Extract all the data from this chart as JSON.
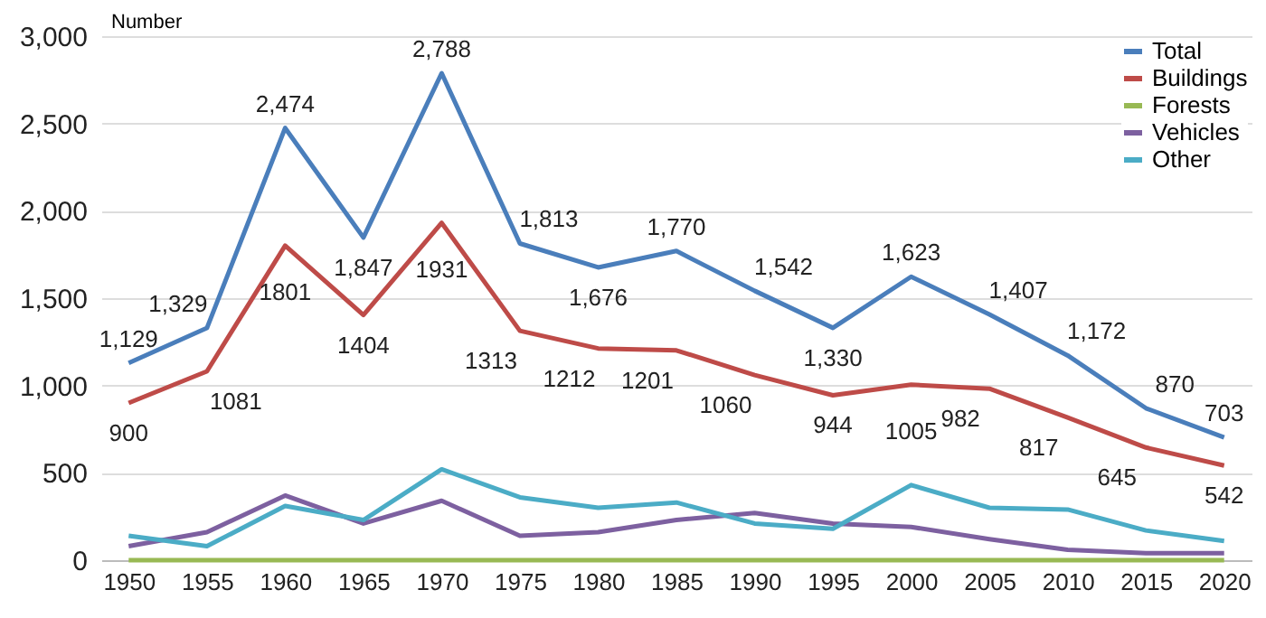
{
  "chart_data": {
    "type": "line",
    "ylabel": "Number",
    "categories": [
      "1950",
      "1955",
      "1960",
      "1965",
      "1970",
      "1975",
      "1980",
      "1985",
      "1990",
      "1995",
      "2000",
      "2005",
      "2010",
      "2015",
      "2020"
    ],
    "ylim": [
      0,
      3000
    ],
    "yticks": [
      {
        "value": 0,
        "label": "0"
      },
      {
        "value": 500,
        "label": "500"
      },
      {
        "value": 1000,
        "label": "1,000"
      },
      {
        "value": 1500,
        "label": "1,500"
      },
      {
        "value": 2000,
        "label": "2,000"
      },
      {
        "value": 2500,
        "label": "2,500"
      },
      {
        "value": 3000,
        "label": "3,000"
      }
    ],
    "grid": "y",
    "legend": "top right",
    "marker": "none",
    "line_style": "solid",
    "series": [
      {
        "name": "Total",
        "color": "#4a7ebb",
        "values": [
          1129,
          1329,
          2474,
          1847,
          2788,
          1813,
          1676,
          1770,
          1542,
          1330,
          1623,
          1407,
          1172,
          870,
          703
        ],
        "value_labels": [
          "1,129",
          "1,329",
          "2,474",
          "1,847",
          "2,788",
          "1,813",
          "1,676",
          "1,770",
          "1,542",
          "1,330",
          "1,623",
          "1,407",
          "1,172",
          "870",
          "703"
        ]
      },
      {
        "name": "Buildings",
        "color": "#be4b48",
        "values": [
          900,
          1081,
          1801,
          1404,
          1931,
          1313,
          1212,
          1201,
          1060,
          944,
          1005,
          982,
          817,
          645,
          542
        ],
        "value_labels": [
          "900",
          "1081",
          "1801",
          "1404",
          "1931",
          "1313",
          "1212",
          "1201",
          "1060",
          "944",
          "1005",
          "982",
          "817",
          "645",
          "542"
        ]
      },
      {
        "name": "Forests",
        "color": "#98b954",
        "values": [
          0,
          0,
          0,
          0,
          0,
          0,
          0,
          0,
          0,
          0,
          0,
          0,
          0,
          0,
          0
        ]
      },
      {
        "name": "Vehicles",
        "color": "#7d60a0",
        "values": [
          80,
          160,
          370,
          210,
          340,
          140,
          160,
          230,
          270,
          210,
          190,
          120,
          60,
          40,
          40
        ]
      },
      {
        "name": "Other",
        "color": "#4bacc6",
        "values": [
          140,
          80,
          310,
          230,
          520,
          360,
          300,
          330,
          210,
          180,
          430,
          300,
          290,
          170,
          110
        ]
      }
    ]
  }
}
